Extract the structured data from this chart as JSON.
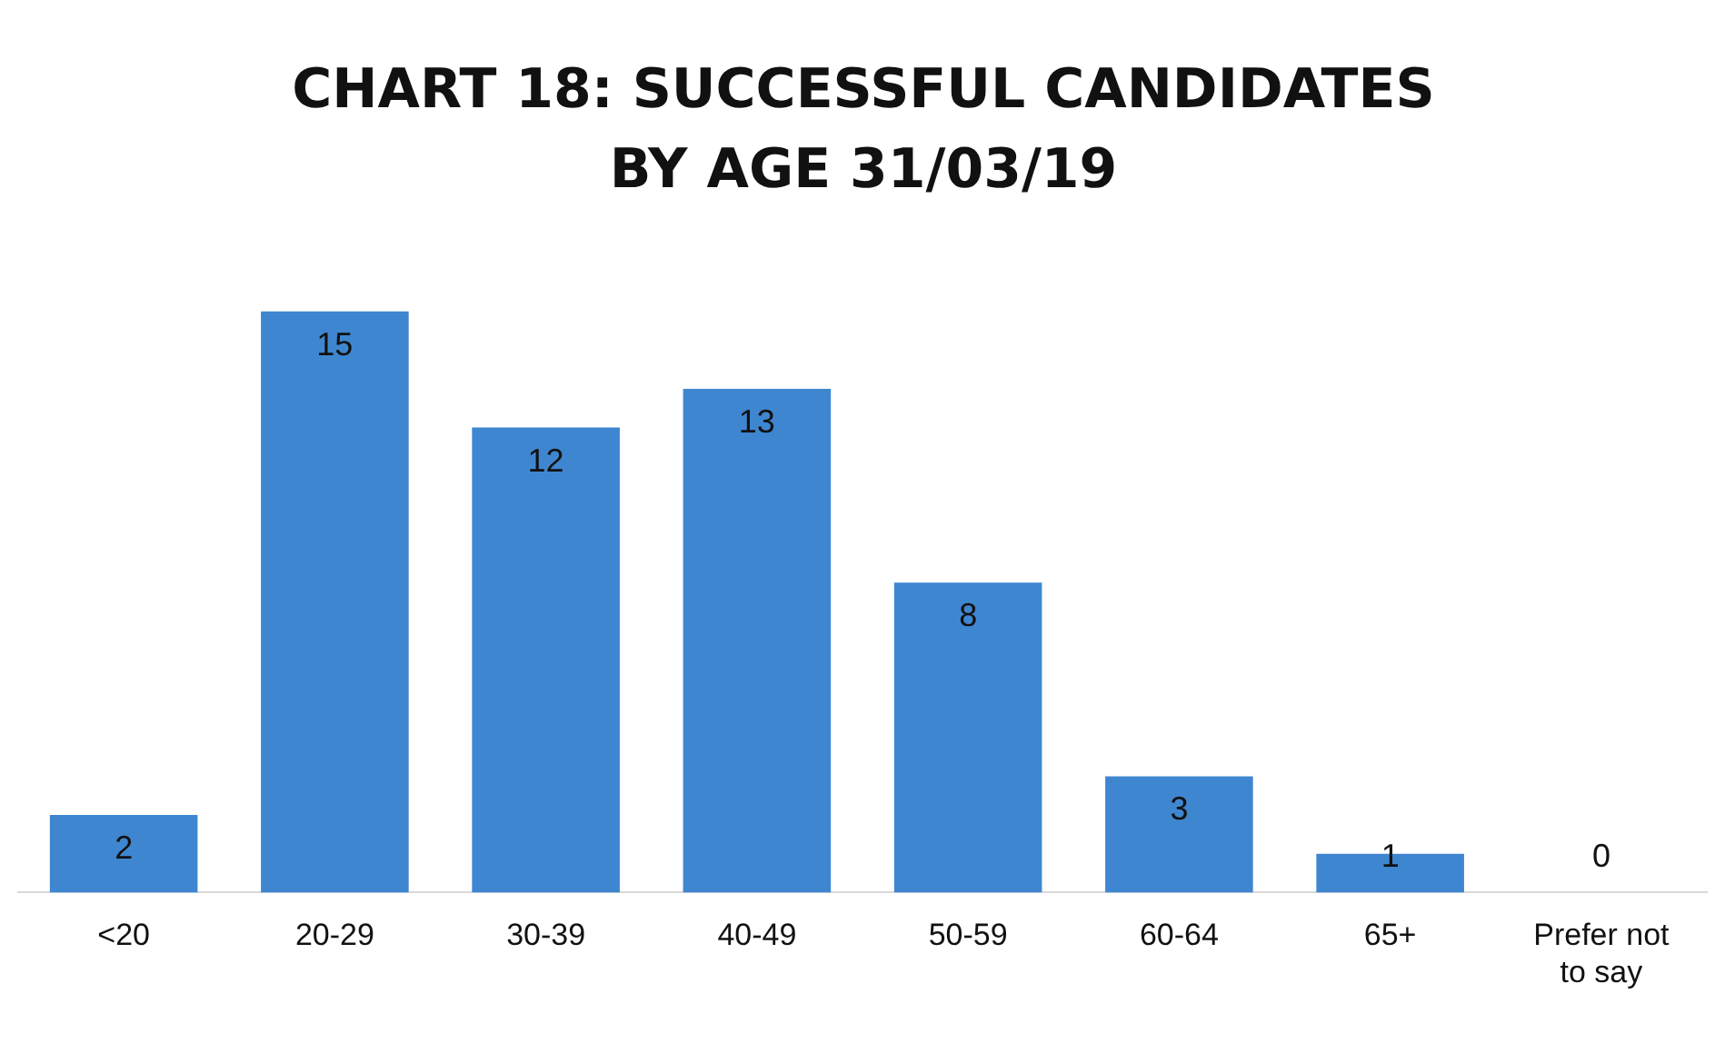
{
  "chart_data": {
    "type": "bar",
    "title": "CHART 18: SUCCESSFUL CANDIDATES BY AGE 31/03/19",
    "categories": [
      "<20",
      "20-29",
      "30-39",
      "40-49",
      "50-59",
      "60-64",
      "65+",
      "Prefer not to say"
    ],
    "values": [
      2,
      15,
      12,
      13,
      8,
      3,
      1,
      0
    ],
    "color": "#3f86d0",
    "data_labels": true,
    "grid": false,
    "legend": false,
    "tick_labels": "x"
  }
}
